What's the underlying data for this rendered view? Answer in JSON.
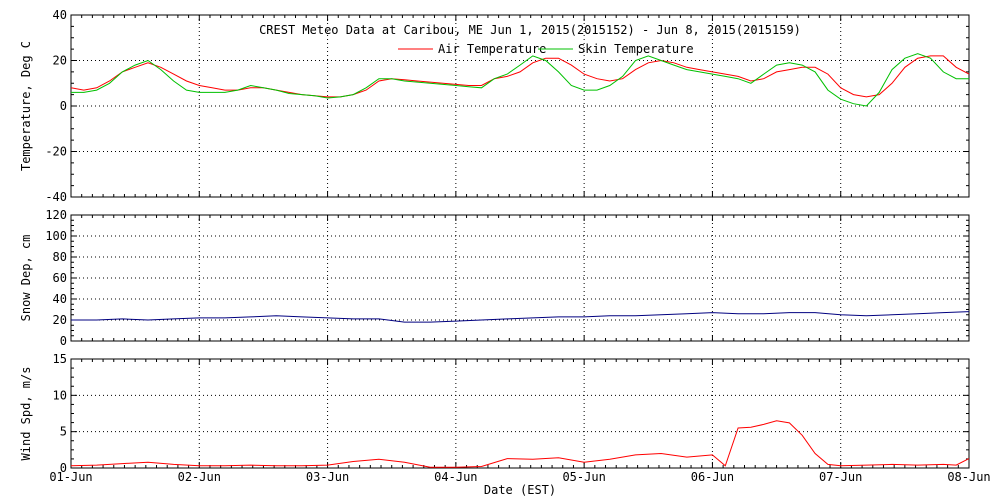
{
  "title": "CREST Meteo Data at Caribou, ME   Jun  1, 2015(2015152) - Jun  8, 2015(2015159)",
  "xlabel": "Date (EST)",
  "x_ticks": [
    "01-Jun",
    "02-Jun",
    "03-Jun",
    "04-Jun",
    "05-Jun",
    "06-Jun",
    "07-Jun",
    "08-Jun"
  ],
  "colors": {
    "air": "#ff0000",
    "skin": "#00c000",
    "snow": "#000080",
    "wind": "#ff0000",
    "grid": "#000000"
  },
  "chart_data": [
    {
      "type": "line",
      "ylabel": "Temperature, Deg C",
      "ylim": [
        -40,
        40
      ],
      "yticks": [
        -40,
        -20,
        0,
        20,
        40
      ],
      "xlim": [
        0,
        7
      ],
      "grid": true,
      "legend": "top-center",
      "series": [
        {
          "name": "Air Temperature",
          "x": [
            0,
            0.1,
            0.2,
            0.3,
            0.4,
            0.5,
            0.6,
            0.7,
            0.8,
            0.9,
            1.0,
            1.1,
            1.2,
            1.3,
            1.4,
            1.5,
            1.6,
            1.7,
            1.8,
            1.9,
            2.0,
            2.1,
            2.2,
            2.3,
            2.4,
            2.5,
            2.6,
            2.7,
            2.8,
            2.9,
            3.0,
            3.1,
            3.2,
            3.3,
            3.4,
            3.5,
            3.6,
            3.7,
            3.8,
            3.9,
            4.0,
            4.1,
            4.2,
            4.3,
            4.4,
            4.5,
            4.6,
            4.7,
            4.8,
            4.9,
            5.0,
            5.1,
            5.2,
            5.3,
            5.4,
            5.5,
            5.6,
            5.7,
            5.8,
            5.9,
            6.0,
            6.1,
            6.2,
            6.3,
            6.4,
            6.5,
            6.6,
            6.7,
            6.8,
            6.9,
            7.0
          ],
          "values": [
            8,
            7,
            8,
            11,
            15,
            17,
            19,
            17,
            14,
            11,
            9,
            8,
            7,
            7,
            8,
            8,
            7,
            6,
            5,
            4.5,
            4,
            4,
            5,
            7,
            11,
            12,
            11.5,
            11,
            10.5,
            10,
            9.5,
            9,
            9,
            12,
            13,
            15,
            19,
            21,
            21,
            18,
            14,
            12,
            11,
            12,
            16,
            19,
            20,
            19,
            17,
            16,
            15,
            14,
            13,
            11,
            12,
            15,
            16,
            17,
            17,
            14,
            8,
            5,
            4,
            5,
            10,
            17,
            21,
            22,
            22,
            17,
            14
          ]
        },
        {
          "name": "Skin Temperature",
          "x": [
            0,
            0.1,
            0.2,
            0.3,
            0.4,
            0.5,
            0.6,
            0.7,
            0.8,
            0.9,
            1.0,
            1.1,
            1.2,
            1.3,
            1.4,
            1.5,
            1.6,
            1.7,
            1.8,
            1.9,
            2.0,
            2.1,
            2.2,
            2.3,
            2.4,
            2.5,
            2.6,
            2.7,
            2.8,
            2.9,
            3.0,
            3.1,
            3.2,
            3.3,
            3.4,
            3.5,
            3.6,
            3.7,
            3.8,
            3.9,
            4.0,
            4.1,
            4.2,
            4.3,
            4.4,
            4.5,
            4.6,
            4.7,
            4.8,
            4.9,
            5.0,
            5.1,
            5.2,
            5.3,
            5.4,
            5.5,
            5.6,
            5.7,
            5.8,
            5.9,
            6.0,
            6.1,
            6.2,
            6.3,
            6.4,
            6.5,
            6.6,
            6.7,
            6.8,
            6.9,
            7.0
          ],
          "values": [
            6,
            6,
            7,
            10,
            15,
            18,
            20,
            16,
            11,
            7,
            6,
            6,
            6,
            7,
            9,
            8,
            7,
            5.5,
            5,
            4.5,
            3.5,
            4,
            5,
            8,
            12,
            12,
            11,
            10.5,
            10,
            9.5,
            9,
            8.5,
            8,
            12,
            14,
            18,
            22,
            20,
            15,
            9,
            7,
            7,
            9,
            13,
            20,
            22,
            20,
            18,
            16,
            15,
            14,
            13,
            12,
            10,
            14,
            18,
            19,
            18,
            15,
            7,
            3,
            1,
            0,
            6,
            16,
            21,
            23,
            21,
            15,
            12,
            12
          ]
        }
      ]
    },
    {
      "type": "line",
      "ylabel": "Snow Dep, cm",
      "ylim": [
        0,
        120
      ],
      "yticks": [
        0,
        20,
        40,
        60,
        80,
        100,
        120
      ],
      "xlim": [
        0,
        7
      ],
      "grid": true,
      "series": [
        {
          "x": [
            0,
            0.2,
            0.4,
            0.6,
            0.8,
            1.0,
            1.2,
            1.4,
            1.6,
            1.8,
            2.0,
            2.2,
            2.4,
            2.6,
            2.8,
            3.0,
            3.2,
            3.4,
            3.6,
            3.8,
            4.0,
            4.2,
            4.4,
            4.6,
            4.8,
            5.0,
            5.2,
            5.4,
            5.6,
            5.8,
            6.0,
            6.2,
            6.4,
            6.6,
            6.8,
            7.0
          ],
          "values": [
            20,
            20,
            21,
            20,
            21,
            22,
            22,
            23,
            24,
            23,
            22,
            21,
            21,
            18,
            18,
            19,
            20,
            21,
            22,
            23,
            23,
            24,
            24,
            25,
            26,
            27,
            26,
            26,
            27,
            27,
            25,
            24,
            25,
            26,
            27,
            28
          ]
        }
      ]
    },
    {
      "type": "line",
      "ylabel": "Wind Spd, m/s",
      "ylim": [
        0,
        15
      ],
      "yticks": [
        0,
        5,
        10,
        15
      ],
      "xlim": [
        0,
        7
      ],
      "grid": true,
      "series": [
        {
          "x": [
            0,
            0.2,
            0.4,
            0.6,
            0.8,
            1.0,
            1.2,
            1.4,
            1.6,
            1.8,
            2.0,
            2.2,
            2.4,
            2.6,
            2.8,
            3.0,
            3.2,
            3.4,
            3.6,
            3.8,
            4.0,
            4.2,
            4.4,
            4.6,
            4.8,
            5.0,
            5.1,
            5.2,
            5.3,
            5.4,
            5.5,
            5.6,
            5.7,
            5.8,
            5.9,
            6.0,
            6.2,
            6.4,
            6.6,
            6.8,
            6.9,
            7.0
          ],
          "values": [
            0.3,
            0.4,
            0.6,
            0.8,
            0.5,
            0.3,
            0.3,
            0.4,
            0.3,
            0.3,
            0.4,
            0.9,
            1.2,
            0.8,
            0.1,
            0.1,
            0.2,
            1.3,
            1.2,
            1.4,
            0.8,
            1.2,
            1.8,
            2.0,
            1.5,
            1.8,
            0.3,
            5.5,
            5.6,
            6.0,
            6.5,
            6.2,
            4.5,
            2.0,
            0.5,
            0.3,
            0.4,
            0.5,
            0.4,
            0.5,
            0.4,
            1.3
          ]
        }
      ]
    }
  ]
}
